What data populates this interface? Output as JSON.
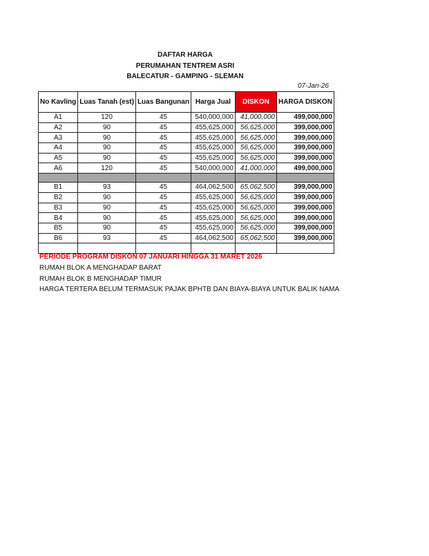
{
  "header": {
    "title": "DAFTAR HARGA",
    "subtitle": "PERUMAHAN TENTREM ASRI",
    "location": "BALECATUR - GAMPING - SLEMAN",
    "date": "07-Jan-26"
  },
  "table": {
    "columns": [
      "No Kavling",
      "Luas Tanah (est)",
      "Luas Bangunan",
      "Harga Jual",
      "DISKON",
      "HARGA DISKON"
    ],
    "block_a": [
      [
        "A1",
        "120",
        "45",
        "540,000,000",
        "41,000,000",
        "499,000,000"
      ],
      [
        "A2",
        "90",
        "45",
        "455,625,000",
        "56,625,000",
        "399,000,000"
      ],
      [
        "A3",
        "90",
        "45",
        "455,625,000",
        "56,625,000",
        "399,000,000"
      ],
      [
        "A4",
        "90",
        "45",
        "455,625,000",
        "56,625,000",
        "399,000,000"
      ],
      [
        "A5",
        "90",
        "45",
        "455,625,000",
        "56,625,000",
        "399,000,000"
      ],
      [
        "A6",
        "120",
        "45",
        "540,000,000",
        "41,000,000",
        "499,000,000"
      ]
    ],
    "block_b": [
      [
        "B1",
        "93",
        "45",
        "464,062,500",
        "65,062,500",
        "399,000,000"
      ],
      [
        "B2",
        "90",
        "45",
        "455,625,000",
        "56,625,000",
        "399,000,000"
      ],
      [
        "B3",
        "90",
        "45",
        "455,625,000",
        "56,625,000",
        "399,000,000"
      ],
      [
        "B4",
        "90",
        "45",
        "455,625,000",
        "56,625,000",
        "399,000,000"
      ],
      [
        "B5",
        "90",
        "45",
        "455,625,000",
        "56,625,000",
        "399,000,000"
      ],
      [
        "B6",
        "93",
        "45",
        "464,062,500",
        "65,062,500",
        "399,000,000"
      ]
    ]
  },
  "notes": [
    "PERIODE PROGRAM DISKON 07 JANUARI HINGGA 31 MARET 2026",
    "RUMAH BLOK A MENGHADAP BARAT",
    "RUMAH BLOK B MENGHADAP TIMUR",
    "HARGA TERTERA BELUM TERMASUK PAJAK BPHTB DAN BIAYA-BIAYA UNTUK BALIK NAMA"
  ],
  "colors": {
    "accent_red": "#e8000b",
    "separator_gray": "#a6a6a6"
  }
}
